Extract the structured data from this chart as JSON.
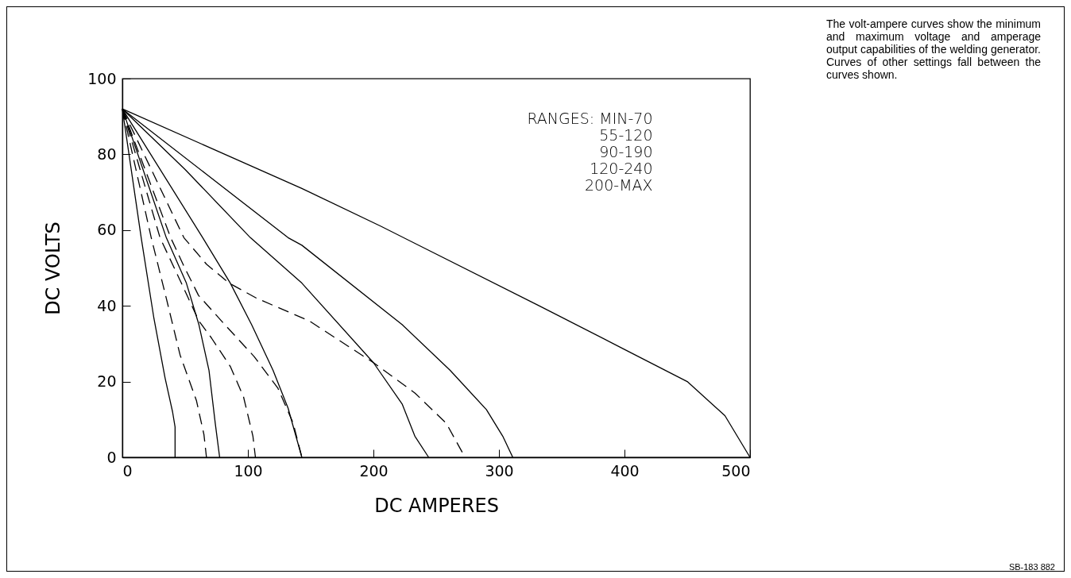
{
  "chart_data": {
    "type": "line",
    "xlabel": "DC AMPERES",
    "ylabel": "DC VOLTS",
    "xlim": [
      0,
      500
    ],
    "xticks": [
      0,
      100,
      200,
      300,
      400,
      500
    ],
    "ylim": [
      0,
      100
    ],
    "yticks": [
      0,
      20,
      40,
      60,
      80,
      100
    ],
    "annotations": [
      "RANGES: MIN-70",
      "55-120",
      "90-190",
      "120-240",
      "200-MAX",
      "The volt-ampere curves show the minimum and maximum voltage and amperage output capabilities of the welding generator. Curves of other settings fall between the curves shown.",
      "SB-183 882"
    ],
    "series": [
      {
        "color": "#000000",
        "line_style": "solid",
        "x": [
          0,
          15,
          25,
          34,
          40,
          42,
          42
        ],
        "values": [
          92,
          58,
          37,
          21,
          12,
          8,
          0
        ]
      },
      {
        "color": "#000000",
        "line_style": "dashed",
        "x": [
          0,
          23,
          35,
          46,
          59,
          65,
          67
        ],
        "values": [
          92,
          58,
          42,
          27,
          15,
          6,
          0
        ]
      },
      {
        "color": "#000000",
        "line_style": "solid",
        "x": [
          0,
          35,
          51,
          61,
          69,
          74,
          77.5
        ],
        "values": [
          92,
          58,
          46,
          35,
          23,
          9,
          0
        ]
      },
      {
        "color": "#000000",
        "line_style": "dashed",
        "x": [
          0,
          30,
          47,
          61,
          71,
          86,
          96.5,
          104,
          106
        ],
        "values": [
          92,
          58,
          46,
          36,
          31.5,
          24,
          16,
          5.6,
          0
        ]
      },
      {
        "color": "#000000",
        "line_style": "dashed",
        "x": [
          0,
          38.5,
          49,
          60.6,
          81.7,
          105,
          124,
          136,
          143
        ],
        "values": [
          92,
          58,
          50.5,
          42.8,
          35,
          26.6,
          18.2,
          9.1,
          0
        ]
      },
      {
        "color": "#000000",
        "line_style": "solid",
        "x": [
          0,
          64,
          86,
          103,
          120,
          132,
          143
        ],
        "values": [
          92,
          58,
          46,
          35,
          23,
          13,
          0
        ]
      },
      {
        "color": "#000000",
        "line_style": "dashed",
        "x": [
          0,
          49,
          67,
          85,
          107,
          149,
          200,
          233,
          258,
          273
        ],
        "values": [
          92,
          58,
          51,
          46,
          42,
          36,
          25,
          17,
          9,
          0
        ]
      },
      {
        "color": "#000000",
        "line_style": "solid",
        "x": [
          0,
          50,
          102,
          143,
          200,
          223,
          233,
          244
        ],
        "values": [
          92,
          76,
          58,
          46,
          25,
          14,
          5.6,
          0
        ]
      },
      {
        "color": "#000000",
        "line_style": "solid",
        "x": [
          0,
          66,
          132,
          143,
          223,
          261,
          290,
          303,
          311
        ],
        "values": [
          92,
          75,
          58,
          56,
          35,
          23,
          12.6,
          5.6,
          0
        ]
      },
      {
        "color": "#000000",
        "line_style": "solid",
        "x": [
          0,
          143,
          206,
          332,
          400,
          450,
          480,
          500
        ],
        "values": [
          92,
          71,
          61,
          40,
          28.5,
          20,
          11,
          0
        ]
      }
    ]
  }
}
